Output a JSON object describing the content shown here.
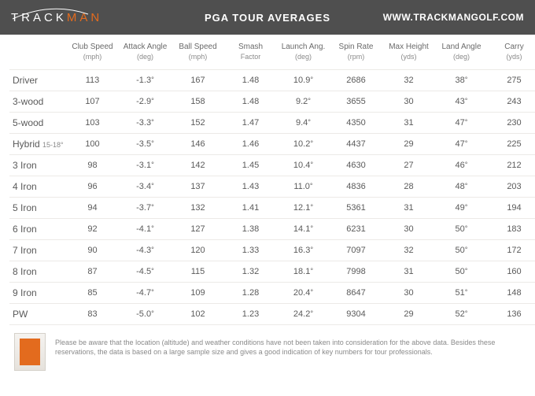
{
  "header": {
    "logo_track": "TRACK",
    "logo_man": "MAN",
    "title": "PGA TOUR AVERAGES",
    "url": "WWW.TRACKMANGOLF.COM",
    "bg_color": "#4f4f4f",
    "accent_color": "#e36b1e"
  },
  "table": {
    "columns": [
      {
        "label": "",
        "unit": ""
      },
      {
        "label": "Club Speed",
        "unit": "(mph)"
      },
      {
        "label": "Attack Angle",
        "unit": "(deg)"
      },
      {
        "label": "Ball Speed",
        "unit": "(mph)"
      },
      {
        "label": "Smash",
        "unit": "Factor"
      },
      {
        "label": "Launch Ang.",
        "unit": "(deg)"
      },
      {
        "label": "Spin Rate",
        "unit": "(rpm)"
      },
      {
        "label": "Max Height",
        "unit": "(yds)"
      },
      {
        "label": "Land Angle",
        "unit": "(deg)"
      },
      {
        "label": "Carry",
        "unit": "(yds)"
      }
    ],
    "rows": [
      {
        "club": "Driver",
        "sub": "",
        "club_speed": "113",
        "attack_angle": "-1.3",
        "ball_speed": "167",
        "smash": "1.48",
        "launch": "10.9",
        "spin": "2686",
        "max_h": "32",
        "land": "38",
        "carry": "275"
      },
      {
        "club": "3-wood",
        "sub": "",
        "club_speed": "107",
        "attack_angle": "-2.9",
        "ball_speed": "158",
        "smash": "1.48",
        "launch": "9.2",
        "spin": "3655",
        "max_h": "30",
        "land": "43",
        "carry": "243"
      },
      {
        "club": "5-wood",
        "sub": "",
        "club_speed": "103",
        "attack_angle": "-3.3",
        "ball_speed": "152",
        "smash": "1.47",
        "launch": "9.4",
        "spin": "4350",
        "max_h": "31",
        "land": "47",
        "carry": "230"
      },
      {
        "club": "Hybrid",
        "sub": "15-18°",
        "club_speed": "100",
        "attack_angle": "-3.5",
        "ball_speed": "146",
        "smash": "1.46",
        "launch": "10.2",
        "spin": "4437",
        "max_h": "29",
        "land": "47",
        "carry": "225"
      },
      {
        "club": "3 Iron",
        "sub": "",
        "club_speed": "98",
        "attack_angle": "-3.1",
        "ball_speed": "142",
        "smash": "1.45",
        "launch": "10.4",
        "spin": "4630",
        "max_h": "27",
        "land": "46",
        "carry": "212"
      },
      {
        "club": "4 Iron",
        "sub": "",
        "club_speed": "96",
        "attack_angle": "-3.4",
        "ball_speed": "137",
        "smash": "1.43",
        "launch": "11.0",
        "spin": "4836",
        "max_h": "28",
        "land": "48",
        "carry": "203"
      },
      {
        "club": "5 Iron",
        "sub": "",
        "club_speed": "94",
        "attack_angle": "-3.7",
        "ball_speed": "132",
        "smash": "1.41",
        "launch": "12.1",
        "spin": "5361",
        "max_h": "31",
        "land": "49",
        "carry": "194"
      },
      {
        "club": "6 Iron",
        "sub": "",
        "club_speed": "92",
        "attack_angle": "-4.1",
        "ball_speed": "127",
        "smash": "1.38",
        "launch": "14.1",
        "spin": "6231",
        "max_h": "30",
        "land": "50",
        "carry": "183"
      },
      {
        "club": "7 Iron",
        "sub": "",
        "club_speed": "90",
        "attack_angle": "-4.3",
        "ball_speed": "120",
        "smash": "1.33",
        "launch": "16.3",
        "spin": "7097",
        "max_h": "32",
        "land": "50",
        "carry": "172"
      },
      {
        "club": "8 Iron",
        "sub": "",
        "club_speed": "87",
        "attack_angle": "-4.5",
        "ball_speed": "115",
        "smash": "1.32",
        "launch": "18.1",
        "spin": "7998",
        "max_h": "31",
        "land": "50",
        "carry": "160"
      },
      {
        "club": "9 Iron",
        "sub": "",
        "club_speed": "85",
        "attack_angle": "-4.7",
        "ball_speed": "109",
        "smash": "1.28",
        "launch": "20.4",
        "spin": "8647",
        "max_h": "30",
        "land": "51",
        "carry": "148"
      },
      {
        "club": "PW",
        "sub": "",
        "club_speed": "83",
        "attack_angle": "-5.0",
        "ball_speed": "102",
        "smash": "1.23",
        "launch": "24.2",
        "spin": "9304",
        "max_h": "29",
        "land": "52",
        "carry": "136"
      }
    ],
    "border_color": "#eceae7",
    "header_fontsize": 10,
    "cell_fontsize": 11
  },
  "footer": {
    "disclaimer": "Please be aware that the location (altitude) and weather conditions have not been taken into consideration for the above data. Besides these reservations, the data is based on a large sample size and gives a good indication of key numbers for tour professionals."
  }
}
